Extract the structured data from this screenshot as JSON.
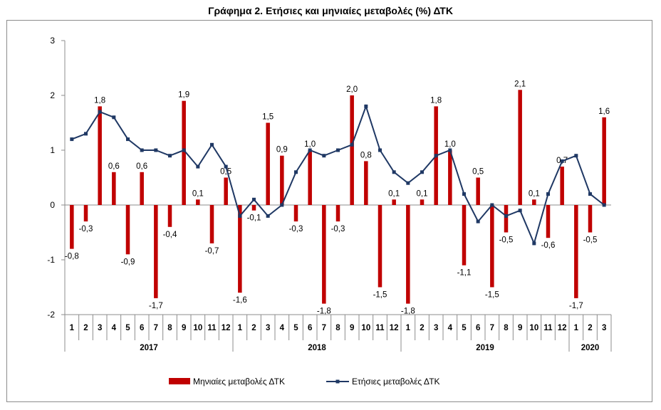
{
  "chart_data": {
    "type": "bar+line",
    "title": "Γράφημα 2. Ετήσιες και μηνιαίες μεταβολές (%) ΔΤΚ",
    "xlabel": "",
    "ylabel": "",
    "ylim": [
      -2,
      3
    ],
    "yticks": [
      -2,
      -1,
      0,
      1,
      2,
      3
    ],
    "grid": false,
    "legend_position": "bottom",
    "years": [
      {
        "label": "2017",
        "months": 12
      },
      {
        "label": "2018",
        "months": 12
      },
      {
        "label": "2019",
        "months": 12
      },
      {
        "label": "2020",
        "months": 3
      }
    ],
    "categories": [
      "1",
      "2",
      "3",
      "4",
      "5",
      "6",
      "7",
      "8",
      "9",
      "10",
      "11",
      "12",
      "1",
      "2",
      "3",
      "4",
      "5",
      "6",
      "7",
      "8",
      "9",
      "10",
      "11",
      "12",
      "1",
      "2",
      "3",
      "4",
      "5",
      "6",
      "7",
      "8",
      "9",
      "10",
      "11",
      "12",
      "1",
      "2",
      "3"
    ],
    "series": [
      {
        "name": "Μηνιαίες μεταβολές ΔΤΚ",
        "type": "bar",
        "color": "#C00000",
        "values": [
          -0.8,
          -0.3,
          1.8,
          0.6,
          -0.9,
          0.6,
          -1.7,
          -0.4,
          1.9,
          0.1,
          -0.7,
          0.5,
          -1.6,
          -0.1,
          1.5,
          0.9,
          -0.3,
          1.0,
          -1.8,
          -0.3,
          2.0,
          0.8,
          -1.5,
          0.1,
          -1.8,
          0.1,
          1.8,
          1.0,
          -1.1,
          0.5,
          -1.5,
          -0.5,
          2.1,
          0.1,
          -0.6,
          0.7,
          -1.7,
          -0.5,
          1.6
        ],
        "labels": [
          "-0,8",
          "-0,3",
          "1,8",
          "0,6",
          "-0,9",
          "0,6",
          "-1,7",
          "-0,4",
          "1,9",
          "0,1",
          "-0,7",
          "0,5",
          "-1,6",
          "-0,1",
          "1,5",
          "0,9",
          "-0,3",
          "1,0",
          "-1,8",
          "-0,3",
          "2,0",
          "0,8",
          "-1,5",
          "0,1",
          "-1,8",
          "0,1",
          "1,8",
          "1,0",
          "-1,1",
          "0,5",
          "-1,5",
          "-0,5",
          "2,1",
          "0,1",
          "-0,6",
          "0,7",
          "-1,7",
          "-0,5",
          "1,6"
        ]
      },
      {
        "name": "Ετήσιες μεταβολές ΔΤΚ",
        "type": "line",
        "color": "#1F3864",
        "values": [
          1.2,
          1.3,
          1.7,
          1.6,
          1.2,
          1.0,
          1.0,
          0.9,
          1.0,
          0.7,
          1.1,
          0.7,
          -0.2,
          0.1,
          -0.2,
          0.0,
          0.6,
          1.0,
          0.9,
          1.0,
          1.1,
          1.8,
          1.0,
          0.6,
          0.4,
          0.6,
          0.9,
          1.0,
          0.2,
          -0.3,
          0.0,
          -0.2,
          -0.1,
          -0.7,
          0.2,
          0.8,
          0.9,
          0.2,
          0.0
        ]
      }
    ]
  }
}
